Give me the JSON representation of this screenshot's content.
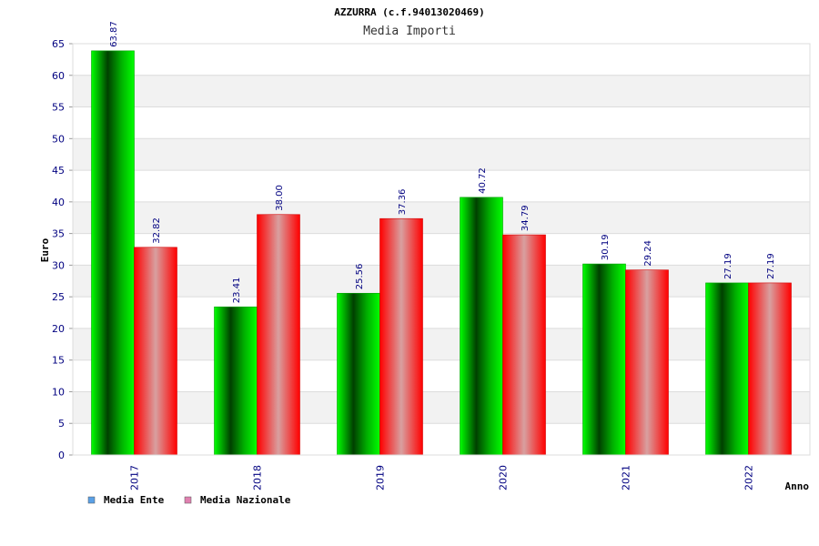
{
  "chart_data": {
    "type": "bar",
    "title": "AZZURRA (c.f.94013020469)",
    "subtitle": "Media Importi",
    "xlabel": "Anno",
    "ylabel": "Euro",
    "categories": [
      "2017",
      "2018",
      "2019",
      "2020",
      "2021",
      "2022"
    ],
    "series": [
      {
        "name": "Media Ente",
        "values": [
          63.87,
          23.41,
          25.56,
          40.72,
          30.19,
          27.19
        ],
        "labels": [
          "63.87",
          "23.41",
          "25.56",
          "40.72",
          "30.19",
          "27.19"
        ],
        "color": "#00c000",
        "legend_color": "#5aa0e6"
      },
      {
        "name": "Media Nazionale",
        "values": [
          32.82,
          38.0,
          37.36,
          34.79,
          29.24,
          27.19
        ],
        "labels": [
          "32.82",
          "38.00",
          "37.36",
          "34.79",
          "29.24",
          "27.19"
        ],
        "color": "#ff0000",
        "legend_color": "#e080b0"
      }
    ],
    "ylim": [
      0,
      65
    ],
    "yticks": [
      0,
      5,
      10,
      15,
      20,
      25,
      30,
      35,
      40,
      45,
      50,
      55,
      60,
      65
    ],
    "grid": true,
    "legend_position": "bottom-left"
  }
}
